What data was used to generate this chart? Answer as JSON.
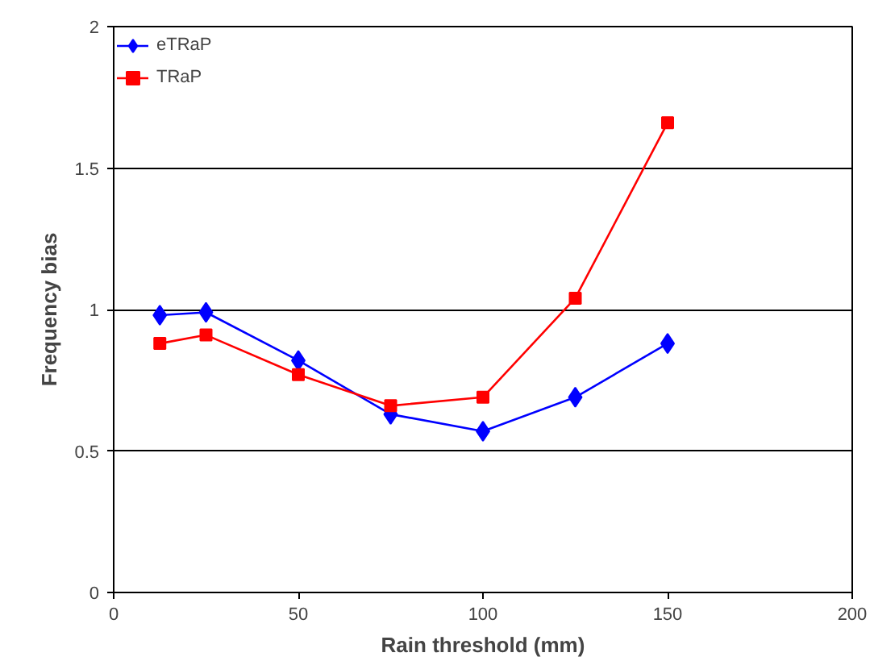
{
  "chart_data": {
    "type": "line",
    "xlabel": "Rain threshold (mm)",
    "ylabel": "Frequency bias",
    "x": [
      12.5,
      25,
      50,
      75,
      100,
      125,
      150
    ],
    "series": [
      {
        "name": "eTRaP",
        "color": "#0000ff",
        "marker": "diamond",
        "values": [
          0.98,
          0.99,
          0.82,
          0.63,
          0.57,
          0.69,
          0.88
        ]
      },
      {
        "name": "TRaP",
        "color": "#ff0000",
        "marker": "square",
        "values": [
          0.88,
          0.91,
          0.77,
          0.66,
          0.69,
          1.04,
          1.66
        ]
      }
    ],
    "xlim": [
      0,
      200
    ],
    "xticks": [
      0,
      50,
      100,
      150,
      200
    ],
    "ylim": [
      0,
      2
    ],
    "yticks": [
      0,
      0.5,
      1,
      1.5,
      2
    ],
    "grid": "y",
    "legend": "top left",
    "line_style": "solid"
  }
}
